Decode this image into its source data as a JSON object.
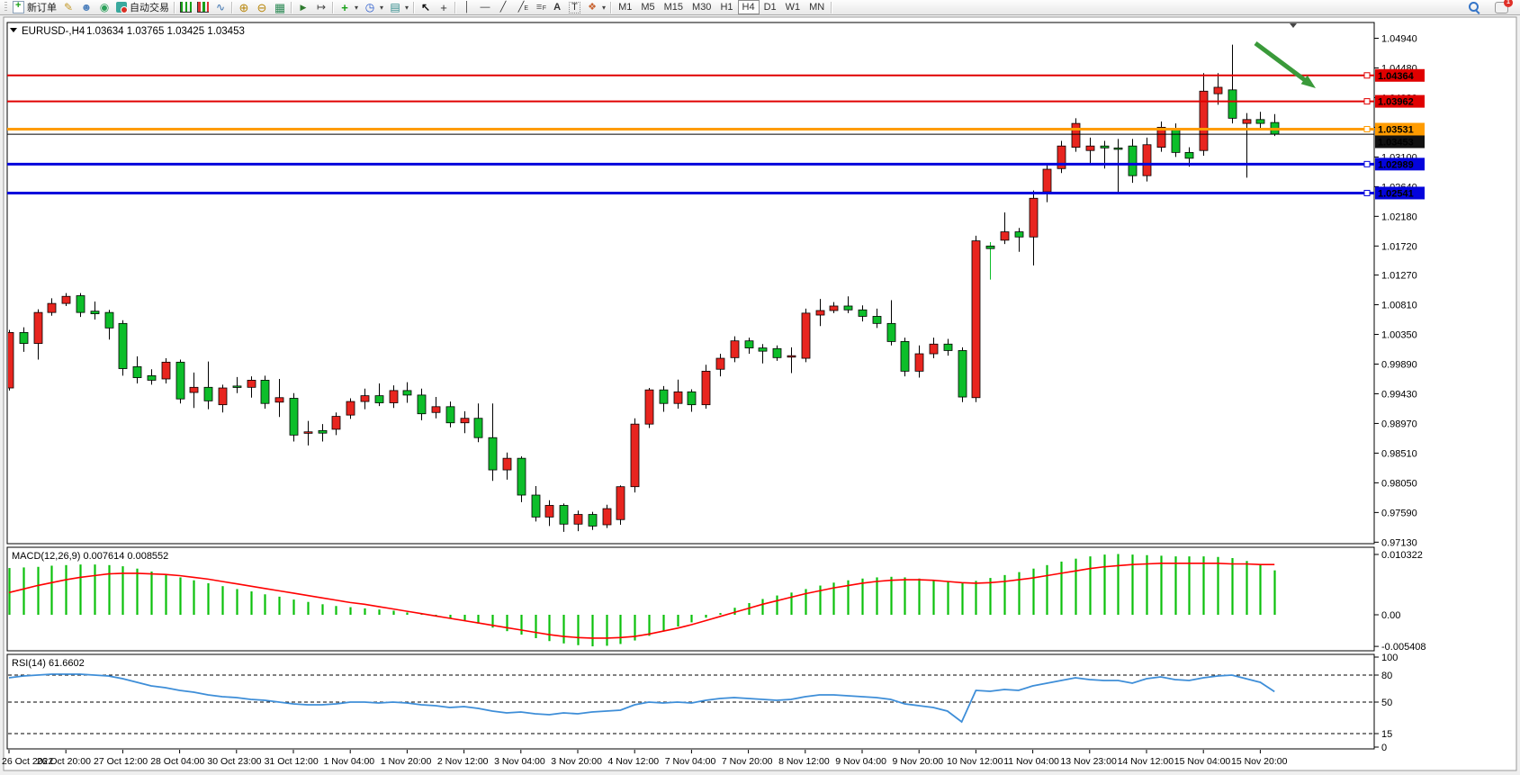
{
  "toolbar": {
    "groups": [
      {
        "items": [
          {
            "icon": "new-order",
            "label": "新订单",
            "name": "new-order-button"
          },
          {
            "icon": "crayon",
            "name": "crayon-tool-button"
          },
          {
            "icon": "profile",
            "name": "profile-button"
          },
          {
            "icon": "signal",
            "name": "news-signal-button"
          },
          {
            "icon": "autotrade",
            "label": "自动交易",
            "name": "autotrading-button"
          }
        ]
      },
      {
        "items": [
          {
            "icon": "chart-bars",
            "name": "bar-chart-button"
          },
          {
            "icon": "chart-candles",
            "name": "candlestick-chart-button"
          },
          {
            "icon": "chart-line",
            "name": "line-chart-button"
          }
        ]
      },
      {
        "items": [
          {
            "icon": "zoom-in",
            "name": "zoom-in-button"
          },
          {
            "icon": "zoom-out",
            "name": "zoom-out-button"
          },
          {
            "icon": "tile",
            "name": "tile-windows-button"
          }
        ]
      },
      {
        "items": [
          {
            "icon": "autoscroll",
            "name": "auto-scroll-button"
          },
          {
            "icon": "shift",
            "name": "chart-shift-button"
          }
        ]
      },
      {
        "items": [
          {
            "icon": "indicators",
            "name": "indicators-button",
            "dropdown": true
          },
          {
            "icon": "periods",
            "name": "periods-button",
            "dropdown": true
          },
          {
            "icon": "template",
            "name": "templates-button",
            "dropdown": true
          }
        ]
      },
      {
        "items": [
          {
            "icon": "cursor",
            "name": "cursor-button"
          },
          {
            "icon": "crosshair",
            "name": "crosshair-button"
          }
        ]
      },
      {
        "items": [
          {
            "icon": "vline",
            "name": "vertical-line-button"
          },
          {
            "icon": "hline",
            "name": "horizontal-line-button"
          },
          {
            "icon": "trendline",
            "name": "trendline-button"
          },
          {
            "icon": "channel",
            "name": "equidistant-channel-button"
          },
          {
            "icon": "fibo",
            "name": "fibonacci-button"
          },
          {
            "icon": "text",
            "name": "text-button"
          },
          {
            "icon": "label",
            "name": "text-label-button"
          },
          {
            "icon": "shapes",
            "name": "arrows-button",
            "dropdown": true
          }
        ]
      }
    ],
    "timeframes": [
      "M1",
      "M5",
      "M15",
      "M30",
      "H1",
      "H4",
      "D1",
      "W1",
      "MN"
    ],
    "active_timeframe": "H4",
    "notification_count": "1"
  },
  "chart": {
    "title": "EURUSD-,H4",
    "ohlc_text": "1.03634 1.03765 1.03425 1.03453"
  },
  "chart_data": {
    "type": "candlestick",
    "symbol": "EURUSD-",
    "timeframe": "H4",
    "colors": {
      "bull": "#e8251f",
      "bear": "#0dbe2a",
      "wick": "#000000",
      "macd_hist": "#0cc00c",
      "macd_signal": "#ff0000",
      "rsi": "#3e8ed8"
    },
    "price_axis": {
      "ticks": [
        "1.04940",
        "1.04480",
        "1.04020",
        "1.03560",
        "1.03100",
        "1.02640",
        "1.02180",
        "1.01720",
        "1.01270",
        "1.00810",
        "1.00350",
        "0.99890",
        "0.99430",
        "0.98970",
        "0.98510",
        "0.98050",
        "0.97590",
        "0.97130"
      ]
    },
    "hlines": [
      {
        "price": 1.04364,
        "label": "1.04364",
        "color": "#e00000",
        "width": 2
      },
      {
        "price": 1.03962,
        "label": "1.03962",
        "color": "#e00000",
        "width": 2
      },
      {
        "price": 1.03531,
        "label": "1.03531",
        "color": "#ff9c00",
        "width": 3
      },
      {
        "price": 1.02989,
        "label": "1.02989",
        "color": "#0404dc",
        "width": 3
      },
      {
        "price": 1.02541,
        "label": "1.02541",
        "color": "#0404dc",
        "width": 3
      }
    ],
    "bid": {
      "price": 1.03453,
      "label": "1.03453",
      "color": "#000000"
    },
    "candles": [
      [
        0.9952,
        1.0042,
        0.9948,
        1.0038
      ],
      [
        1.0038,
        1.0046,
        1.0008,
        1.0021
      ],
      [
        1.0021,
        1.0074,
        0.9996,
        1.0069
      ],
      [
        1.0069,
        1.0091,
        1.0064,
        1.0083
      ],
      [
        1.0083,
        1.0099,
        1.0079,
        1.0094
      ],
      [
        1.0095,
        1.0099,
        1.0062,
        1.0069
      ],
      [
        1.0071,
        1.0086,
        1.0058,
        1.0067
      ],
      [
        1.0069,
        1.0073,
        1.0027,
        1.0045
      ],
      [
        1.0052,
        1.0057,
        0.9971,
        0.9982
      ],
      [
        0.9985,
        1.0001,
        0.9959,
        0.9968
      ],
      [
        0.9971,
        0.9981,
        0.9957,
        0.9964
      ],
      [
        0.9966,
        0.9998,
        0.9959,
        0.9992
      ],
      [
        0.9992,
        0.9996,
        0.9928,
        0.9935
      ],
      [
        0.9945,
        0.9976,
        0.9921,
        0.9953
      ],
      [
        0.9953,
        0.9993,
        0.9919,
        0.9932
      ],
      [
        0.9926,
        0.9957,
        0.9914,
        0.9952
      ],
      [
        0.9955,
        0.9969,
        0.9944,
        0.9953
      ],
      [
        0.9953,
        0.997,
        0.9937,
        0.9964
      ],
      [
        0.9964,
        0.9971,
        0.992,
        0.9928
      ],
      [
        0.993,
        0.9966,
        0.9907,
        0.9937
      ],
      [
        0.9936,
        0.9944,
        0.9869,
        0.9879
      ],
      [
        0.9883,
        0.9901,
        0.9863,
        0.9884
      ],
      [
        0.9886,
        0.9896,
        0.9869,
        0.9882
      ],
      [
        0.9888,
        0.9914,
        0.9879,
        0.9908
      ],
      [
        0.991,
        0.9936,
        0.9904,
        0.9931
      ],
      [
        0.9931,
        0.9951,
        0.9919,
        0.994
      ],
      [
        0.994,
        0.9959,
        0.9924,
        0.9929
      ],
      [
        0.9929,
        0.9956,
        0.9921,
        0.9948
      ],
      [
        0.9948,
        0.9961,
        0.9929,
        0.9941
      ],
      [
        0.9941,
        0.9951,
        0.9902,
        0.9912
      ],
      [
        0.9914,
        0.9938,
        0.9905,
        0.9923
      ],
      [
        0.9923,
        0.9931,
        0.9891,
        0.9898
      ],
      [
        0.9898,
        0.9916,
        0.9882,
        0.9905
      ],
      [
        0.9905,
        0.9928,
        0.9868,
        0.9875
      ],
      [
        0.9875,
        0.9928,
        0.9808,
        0.9825
      ],
      [
        0.9825,
        0.9852,
        0.981,
        0.9843
      ],
      [
        0.9843,
        0.9846,
        0.9775,
        0.9786
      ],
      [
        0.9786,
        0.98,
        0.9745,
        0.9752
      ],
      [
        0.9752,
        0.9778,
        0.9738,
        0.977
      ],
      [
        0.977,
        0.9773,
        0.9729,
        0.9741
      ],
      [
        0.9741,
        0.9762,
        0.973,
        0.9756
      ],
      [
        0.9756,
        0.976,
        0.9732,
        0.9738
      ],
      [
        0.974,
        0.9771,
        0.9735,
        0.9765
      ],
      [
        0.9748,
        0.9801,
        0.974,
        0.9799
      ],
      [
        0.9799,
        0.9905,
        0.979,
        0.9896
      ],
      [
        0.9896,
        0.9952,
        0.989,
        0.9949
      ],
      [
        0.9949,
        0.9955,
        0.9915,
        0.9928
      ],
      [
        0.9928,
        0.9965,
        0.992,
        0.9946
      ],
      [
        0.9946,
        0.995,
        0.9915,
        0.9926
      ],
      [
        0.9926,
        0.9988,
        0.992,
        0.9978
      ],
      [
        0.9981,
        1.0005,
        0.997,
        0.9998
      ],
      [
        0.9999,
        1.0032,
        0.9992,
        1.0025
      ],
      [
        1.0025,
        1.003,
        1.0005,
        1.0014
      ],
      [
        1.0014,
        1.002,
        0.999,
        1.0009
      ],
      [
        1.0013,
        1.0018,
        0.9994,
        0.9999
      ],
      [
        1.0,
        1.0015,
        0.9975,
        1.0002
      ],
      [
        0.9998,
        1.0075,
        0.9992,
        1.0068
      ],
      [
        1.0065,
        1.009,
        1.0048,
        1.0072
      ],
      [
        1.0072,
        1.0085,
        1.0068,
        1.0079
      ],
      [
        1.0079,
        1.0094,
        1.0068,
        1.0073
      ],
      [
        1.0073,
        1.008,
        1.0055,
        1.0063
      ],
      [
        1.0063,
        1.0075,
        1.0045,
        1.0052
      ],
      [
        1.0052,
        1.0088,
        1.0018,
        1.0024
      ],
      [
        1.0024,
        1.003,
        0.997,
        0.9978
      ],
      [
        0.9978,
        1.0018,
        0.9968,
        1.0005
      ],
      [
        1.0005,
        1.003,
        0.9998,
        1.002
      ],
      [
        1.002,
        1.0028,
        1.0002,
        1.001
      ],
      [
        1.001,
        1.0015,
        0.993,
        0.9938
      ],
      [
        0.9937,
        1.0188,
        0.993,
        1.018
      ],
      [
        1.0172,
        1.0178,
        1.012,
        1.0168,
        "g"
      ],
      [
        1.0181,
        1.0224,
        1.0175,
        1.0194
      ],
      [
        1.0194,
        1.02,
        1.0163,
        1.0186
      ],
      [
        1.0186,
        1.0258,
        1.0142,
        1.0246
      ],
      [
        1.0256,
        1.0298,
        1.024,
        1.0291
      ],
      [
        1.0292,
        1.0335,
        1.0285,
        1.0327
      ],
      [
        1.0325,
        1.037,
        1.0318,
        1.0362
      ],
      [
        1.032,
        1.034,
        1.0298,
        1.0327
      ],
      [
        1.0327,
        1.0335,
        1.0292,
        1.0324
      ],
      [
        1.0324,
        1.0338,
        1.0256,
        1.0322
      ],
      [
        1.0327,
        1.0338,
        1.027,
        1.0281
      ],
      [
        1.0281,
        1.034,
        1.0272,
        1.0329
      ],
      [
        1.0325,
        1.0365,
        1.0318,
        1.0356
      ],
      [
        1.0354,
        1.0362,
        1.031,
        1.0317
      ],
      [
        1.0317,
        1.0325,
        1.0295,
        1.0308
      ],
      [
        1.032,
        1.044,
        1.0312,
        1.0412
      ],
      [
        1.0408,
        1.044,
        1.0391,
        1.0418
      ],
      [
        1.0414,
        1.0484,
        1.0362,
        1.037
      ],
      [
        1.0362,
        1.0378,
        1.0278,
        1.0368
      ],
      [
        1.0368,
        1.038,
        1.0355,
        1.0362
      ],
      [
        1.03634,
        1.03765,
        1.03425,
        1.03453
      ]
    ],
    "time_labels": [
      "26 Oct 2022",
      "26 Oct 20:00",
      "27 Oct 12:00",
      "28 Oct 04:00",
      "30 Oct 23:00",
      "31 Oct 12:00",
      "1 Nov 04:00",
      "1 Nov 20:00",
      "2 Nov 12:00",
      "3 Nov 04:00",
      "3 Nov 20:00",
      "4 Nov 12:00",
      "7 Nov 04:00",
      "7 Nov 20:00",
      "8 Nov 12:00",
      "9 Nov 04:00",
      "9 Nov 20:00",
      "10 Nov 12:00",
      "11 Nov 04:00",
      "13 Nov 23:00",
      "14 Nov 12:00",
      "15 Nov 04:00",
      "15 Nov 20:00"
    ],
    "macd": {
      "label_text": "MACD(12,26,9) 0.007614 0.008552",
      "axis": [
        {
          "v": 0.010322,
          "t": "0.010322"
        },
        {
          "v": 0,
          "t": "0.00"
        },
        {
          "v": -0.005408,
          "t": "-0.005408"
        }
      ],
      "hist": [
        0.008,
        0.0081,
        0.0082,
        0.0084,
        0.0085,
        0.0086,
        0.0086,
        0.0085,
        0.0083,
        0.0079,
        0.0074,
        0.007,
        0.0064,
        0.0059,
        0.0054,
        0.0049,
        0.0044,
        0.004,
        0.0035,
        0.0031,
        0.0026,
        0.0022,
        0.0018,
        0.0015,
        0.0013,
        0.0011,
        0.0009,
        0.0007,
        0.0004,
        0.0001,
        -0.0002,
        -0.0006,
        -0.001,
        -0.0015,
        -0.0022,
        -0.0028,
        -0.0034,
        -0.004,
        -0.0045,
        -0.0049,
        -0.0052,
        -0.0054,
        -0.0053,
        -0.005,
        -0.0044,
        -0.0036,
        -0.0028,
        -0.002,
        -0.0013,
        -0.0005,
        0.0003,
        0.0012,
        0.002,
        0.0027,
        0.0033,
        0.0038,
        0.0044,
        0.005,
        0.0055,
        0.0059,
        0.0062,
        0.0064,
        0.0065,
        0.0064,
        0.0062,
        0.006,
        0.0057,
        0.0054,
        0.0058,
        0.0063,
        0.0068,
        0.0073,
        0.0079,
        0.0085,
        0.0091,
        0.0096,
        0.01,
        0.0103,
        0.0104,
        0.0103,
        0.0102,
        0.0101,
        0.01,
        0.01,
        0.01,
        0.0099,
        0.0097,
        0.0092,
        0.0085,
        0.0076
      ],
      "signal": [
        0.0038,
        0.0044,
        0.005,
        0.0055,
        0.006,
        0.0064,
        0.0067,
        0.007,
        0.0071,
        0.0071,
        0.007,
        0.0069,
        0.0067,
        0.0064,
        0.0061,
        0.0057,
        0.0053,
        0.0049,
        0.0045,
        0.0041,
        0.0037,
        0.0033,
        0.0029,
        0.0025,
        0.0021,
        0.0018,
        0.0014,
        0.001,
        0.0006,
        0.0002,
        -0.0002,
        -0.0006,
        -0.001,
        -0.0014,
        -0.0018,
        -0.0022,
        -0.0026,
        -0.003,
        -0.0034,
        -0.0037,
        -0.0039,
        -0.004,
        -0.004,
        -0.0039,
        -0.0037,
        -0.0033,
        -0.0028,
        -0.0023,
        -0.0017,
        -0.001,
        -0.0003,
        0.0004,
        0.0011,
        0.0018,
        0.0024,
        0.003,
        0.0036,
        0.0041,
        0.0046,
        0.005,
        0.0054,
        0.0057,
        0.0059,
        0.006,
        0.006,
        0.0059,
        0.0057,
        0.0055,
        0.0054,
        0.0055,
        0.0057,
        0.006,
        0.0063,
        0.0067,
        0.0071,
        0.0075,
        0.0079,
        0.0082,
        0.0084,
        0.0086,
        0.0087,
        0.0088,
        0.0088,
        0.0088,
        0.0088,
        0.0088,
        0.0087,
        0.0087,
        0.0086,
        0.0086
      ]
    },
    "rsi": {
      "label_text": "RSI(14) 61.6602",
      "levels": [
        80,
        50,
        15
      ],
      "axis": [
        {
          "v": 100,
          "t": "100"
        },
        {
          "v": 80,
          "t": "80"
        },
        {
          "v": 50,
          "t": "50"
        },
        {
          "v": 15,
          "t": "15"
        },
        {
          "v": 0,
          "t": "0"
        }
      ],
      "values": [
        77,
        79,
        80,
        81,
        81,
        81,
        80,
        79,
        76,
        72,
        68,
        66,
        63,
        61,
        58,
        56,
        55,
        53,
        52,
        50,
        48,
        47,
        47,
        48,
        50,
        50,
        49,
        50,
        49,
        47,
        46,
        44,
        45,
        43,
        40,
        38,
        39,
        37,
        36,
        38,
        37,
        39,
        40,
        41,
        47,
        50,
        49,
        50,
        49,
        52,
        54,
        55,
        54,
        53,
        52,
        53,
        56,
        58,
        58,
        57,
        56,
        55,
        53,
        48,
        46,
        44,
        40,
        28,
        63,
        62,
        64,
        63,
        68,
        71,
        74,
        77,
        75,
        74,
        74,
        71,
        76,
        78,
        75,
        74,
        77,
        79,
        80,
        76,
        72,
        61.66
      ]
    },
    "annotations": [
      {
        "type": "arrow",
        "from": [
          1395,
          48
        ],
        "to": [
          1462,
          98
        ],
        "color": "#3a9a3a"
      }
    ]
  }
}
